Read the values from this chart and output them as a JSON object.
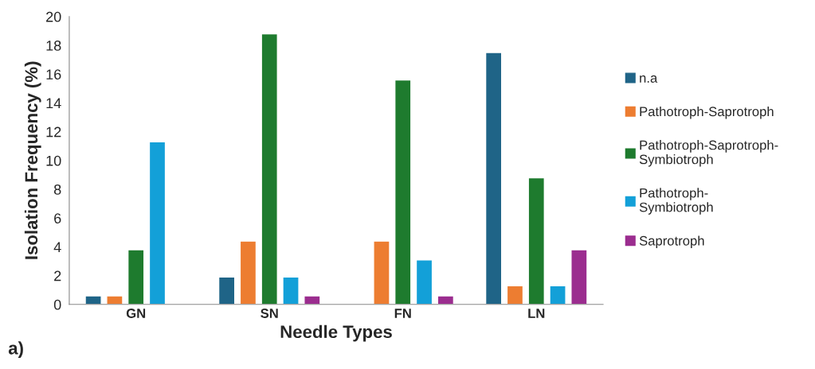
{
  "chart_data": {
    "type": "bar",
    "xlabel": "Needle Types",
    "ylabel": "Isolation Frequency (%)",
    "categories": [
      "GN",
      "SN",
      "FN",
      "LN"
    ],
    "series": [
      {
        "name": "n.a",
        "color": "#1f6487",
        "values": [
          0.6,
          1.9,
          null,
          17.5
        ]
      },
      {
        "name": "Pathotroph-Saprotroph",
        "color": "#ed7d31",
        "values": [
          0.6,
          4.4,
          4.4,
          1.3
        ]
      },
      {
        "name": "Pathotroph-Saprotroph-Symbiotroph",
        "color": "#1e7b2e",
        "values": [
          3.8,
          18.8,
          15.6,
          8.8
        ]
      },
      {
        "name": "Pathotroph-Symbiotroph",
        "color": "#13a0d8",
        "values": [
          11.3,
          1.9,
          3.1,
          1.3
        ]
      },
      {
        "name": "Saprotroph",
        "color": "#9b2d8f",
        "values": [
          null,
          0.6,
          0.6,
          3.8
        ]
      }
    ],
    "ylim": [
      0,
      20
    ],
    "yticks": [
      0,
      2,
      4,
      6,
      8,
      10,
      12,
      14,
      16,
      18,
      20
    ],
    "grid": false,
    "legend": "right",
    "annotations": [
      "a)"
    ]
  }
}
